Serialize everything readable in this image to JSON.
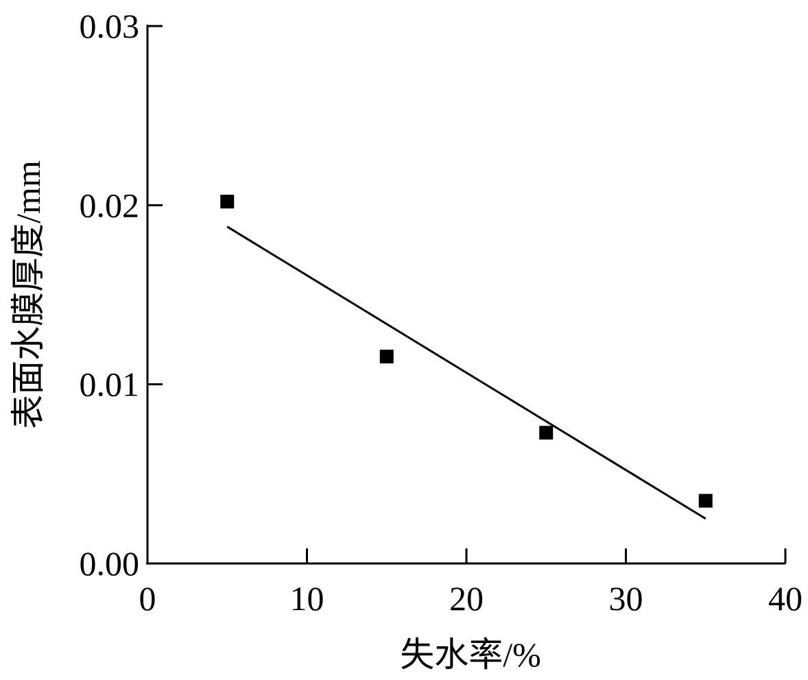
{
  "chart_data": {
    "type": "scatter",
    "x_label": "失水率/%",
    "y_label": "表面水膜厚度/mm",
    "x": [
      5,
      15,
      25,
      35
    ],
    "values": [
      0.0202,
      0.01155,
      0.0073,
      0.0035
    ],
    "color": "#000000",
    "fit": {
      "x": [
        5,
        35
      ],
      "values": [
        0.0188,
        0.0025
      ]
    },
    "xlim": [
      0,
      40
    ],
    "xticks": [
      0,
      10,
      20,
      30,
      40
    ],
    "ylim": [
      0,
      0.03
    ],
    "yticks": [
      {
        "value": 0,
        "label": "0.00"
      },
      0.01,
      0.02,
      0.03
    ]
  }
}
